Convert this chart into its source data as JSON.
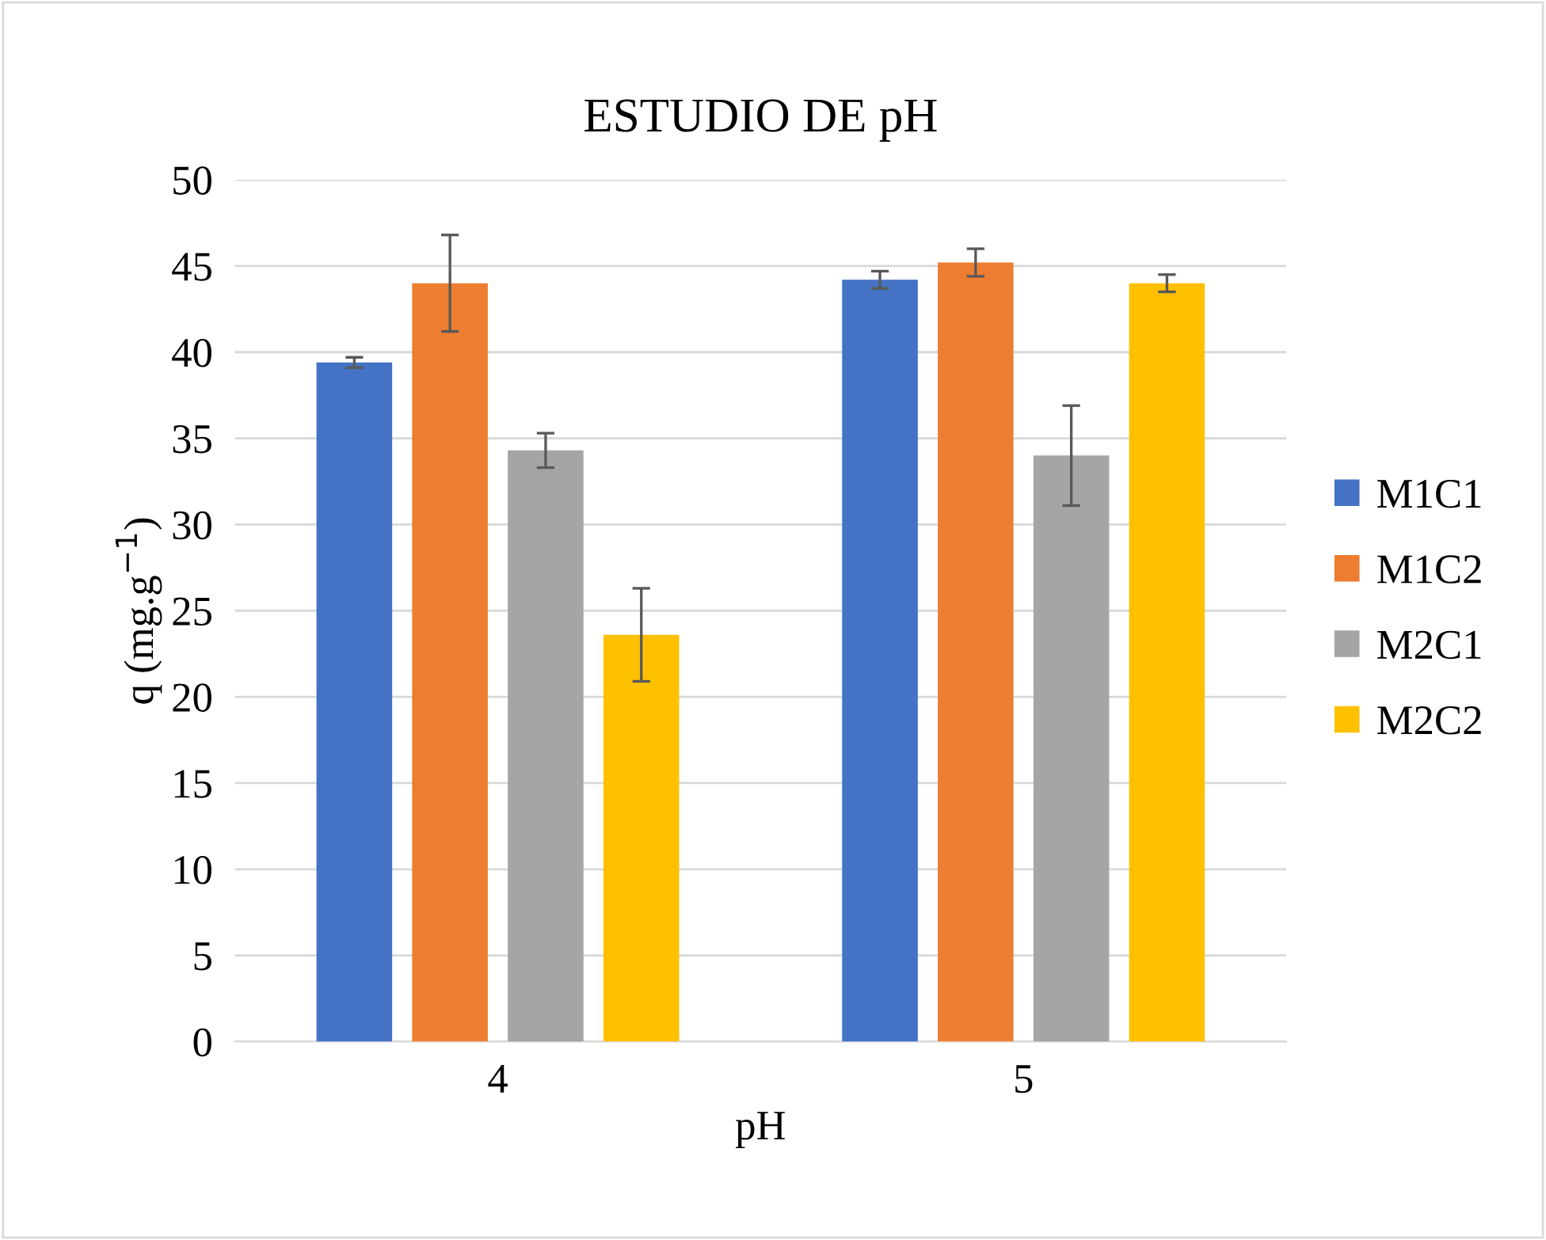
{
  "chart_data": {
    "type": "bar",
    "title": "ESTUDIO DE pH",
    "xlabel": "pH",
    "ylabel": "q (mg.g$^{−1}$)",
    "categories": [
      "4",
      "5"
    ],
    "series": [
      {
        "name": "M1C1",
        "color": "#4472c4",
        "values": [
          39.4,
          44.2
        ],
        "errors": [
          0.3,
          0.5
        ]
      },
      {
        "name": "M1C2",
        "color": "#ed7d31",
        "values": [
          44.0,
          45.2
        ],
        "errors": [
          2.8,
          0.8
        ]
      },
      {
        "name": "M2C1",
        "color": "#a5a5a5",
        "values": [
          34.3,
          34.0
        ],
        "errors": [
          1.0,
          2.9
        ]
      },
      {
        "name": "M2C2",
        "color": "#ffc000",
        "values": [
          23.6,
          44.0
        ],
        "errors": [
          2.7,
          0.5
        ]
      }
    ],
    "ylim": [
      0,
      50
    ],
    "yticks": [
      0,
      5,
      10,
      15,
      20,
      25,
      30,
      35,
      40,
      45,
      50
    ],
    "grid": "y",
    "legend": "right"
  }
}
